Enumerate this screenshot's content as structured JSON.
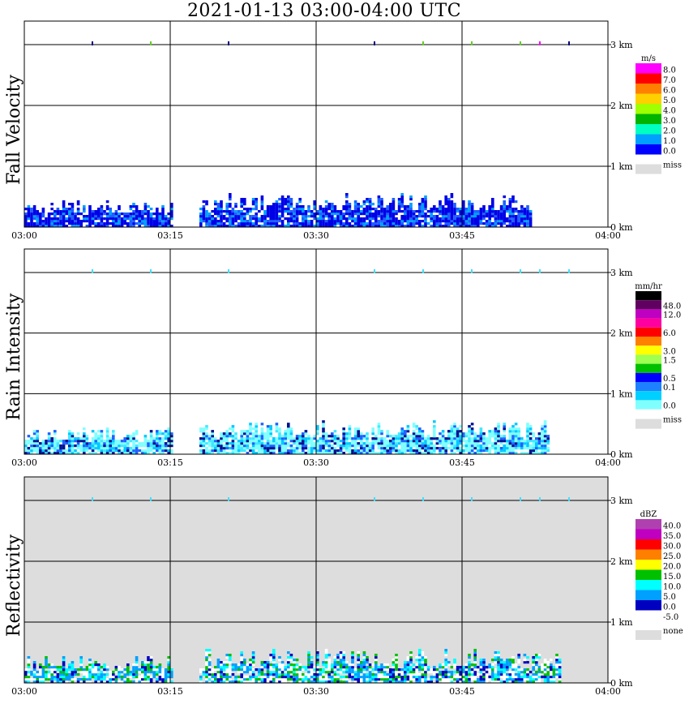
{
  "title": "2021-01-13   03:00-04:00 UTC",
  "chart_data": [
    {
      "type": "heatmap",
      "ylabel": "Fall Velocity",
      "x_ticks": [
        "03:00",
        "03:15",
        "03:30",
        "03:45",
        "04:00"
      ],
      "y_ticks": [
        "0 km",
        "1 km",
        "2 km",
        "3 km"
      ],
      "xlim": [
        "03:00",
        "04:00"
      ],
      "ylim": [
        0,
        3.2
      ],
      "background": "#ffffff",
      "grid": true,
      "colorbar": {
        "unit": "m/s",
        "labels": [
          "8.0",
          "7.0",
          "6.0",
          "5.0",
          "4.0",
          "3.0",
          "2.0",
          "1.0",
          "0.0"
        ],
        "colors": [
          "#ff00ff",
          "#ff0000",
          "#ff7f00",
          "#ffd000",
          "#a0ff00",
          "#00b400",
          "#00ffc0",
          "#00a0ff",
          "#0000ff"
        ],
        "miss_label": "miss",
        "miss_color": "#dddddd"
      },
      "echo": {
        "max_height_km": 0.55,
        "spans": [
          {
            "start": "03:00",
            "end": "03:15",
            "top_km": 0.45
          },
          {
            "start": "03:18",
            "end": "03:52",
            "top_km": 0.55
          }
        ],
        "colors": [
          "#0000e6",
          "#0000e6",
          "#0000e6",
          "#1f5fff",
          "#00a0ff"
        ]
      },
      "top_marks": {
        "height_km": 3.0,
        "times": [
          "03:07",
          "03:13",
          "03:21",
          "03:36",
          "03:41",
          "03:46",
          "03:51",
          "03:53",
          "03:56"
        ],
        "colors": [
          "#000080",
          "#60d020",
          "#000080",
          "#000080",
          "#60d020",
          "#60d020",
          "#60d020",
          "#ff00ff",
          "#000080"
        ]
      }
    },
    {
      "type": "heatmap",
      "ylabel": "Rain Intensity",
      "x_ticks": [
        "03:00",
        "03:15",
        "03:30",
        "03:45",
        "04:00"
      ],
      "y_ticks": [
        "0 km",
        "1 km",
        "2 km",
        "3 km"
      ],
      "xlim": [
        "03:00",
        "04:00"
      ],
      "ylim": [
        0,
        3.2
      ],
      "background": "#ffffff",
      "grid": true,
      "colorbar": {
        "unit": "mm/hr",
        "labels": [
          "48.0",
          "12.0",
          "6.0",
          "3.0",
          "1.5",
          "0.5",
          "0.1",
          "0.0"
        ],
        "colors": [
          "#000000",
          "#600060",
          "#c000c0",
          "#ff00a0",
          "#ff0000",
          "#ff7f00",
          "#ffff00",
          "#a0ff50",
          "#00c000",
          "#0000ff",
          "#1f80ff",
          "#00d0ff",
          "#80ffff"
        ],
        "miss_label": "miss",
        "miss_color": "#dddddd"
      },
      "echo": {
        "max_height_km": 0.55,
        "spans": [
          {
            "start": "03:00",
            "end": "03:15",
            "top_km": 0.45
          },
          {
            "start": "03:18",
            "end": "03:54",
            "top_km": 0.55
          }
        ],
        "colors": [
          "#80ffff",
          "#80ffff",
          "#80ffff",
          "#40e8ff",
          "#00c8ff",
          "#1f60ff",
          "#001090"
        ]
      },
      "top_marks": {
        "height_km": 3.0,
        "times": [
          "03:07",
          "03:13",
          "03:21",
          "03:36",
          "03:41",
          "03:46",
          "03:51",
          "03:53",
          "03:56"
        ],
        "colors": [
          "#40e0ff",
          "#40e0ff",
          "#40e0ff",
          "#40e0ff",
          "#40e0ff",
          "#40e0ff",
          "#40e0ff",
          "#40e0ff",
          "#40e0ff"
        ]
      }
    },
    {
      "type": "heatmap",
      "ylabel": "Reflectivity",
      "x_ticks": [
        "03:00",
        "03:15",
        "03:30",
        "03:45",
        "04:00"
      ],
      "y_ticks": [
        "0 km",
        "1 km",
        "2 km",
        "3 km"
      ],
      "xlim": [
        "03:00",
        "04:00"
      ],
      "ylim": [
        0,
        3.2
      ],
      "background": "#dddddd",
      "grid": true,
      "colorbar": {
        "unit": "dBZ",
        "labels": [
          "40.0",
          "35.0",
          "30.0",
          "25.0",
          "20.0",
          "15.0",
          "10.0",
          "5.0",
          "0.0",
          "-5.0"
        ],
        "colors": [
          "#b040b0",
          "#c000c0",
          "#ff0000",
          "#ff7f00",
          "#ffff00",
          "#00c000",
          "#00ffff",
          "#00a0ff",
          "#0000c0",
          "#ffffff"
        ],
        "miss_label": "none",
        "miss_color": "#dddddd"
      },
      "echo": {
        "max_height_km": 0.55,
        "spans": [
          {
            "start": "03:00",
            "end": "03:15",
            "top_km": 0.45
          },
          {
            "start": "03:18",
            "end": "03:55",
            "top_km": 0.55
          }
        ],
        "colors": [
          "#ffffff",
          "#ffffff",
          "#0000c0",
          "#00a0ff",
          "#00ffff",
          "#00a0ff",
          "#00c000"
        ]
      },
      "top_marks": {
        "height_km": 3.0,
        "times": [
          "03:07",
          "03:13",
          "03:21",
          "03:36",
          "03:41",
          "03:46",
          "03:51",
          "03:53",
          "03:56"
        ],
        "colors": [
          "#40e0ff",
          "#40e0ff",
          "#40e0ff",
          "#40e0ff",
          "#40e0ff",
          "#40e0ff",
          "#40e0ff",
          "#40e0ff",
          "#40e0ff"
        ]
      }
    }
  ]
}
